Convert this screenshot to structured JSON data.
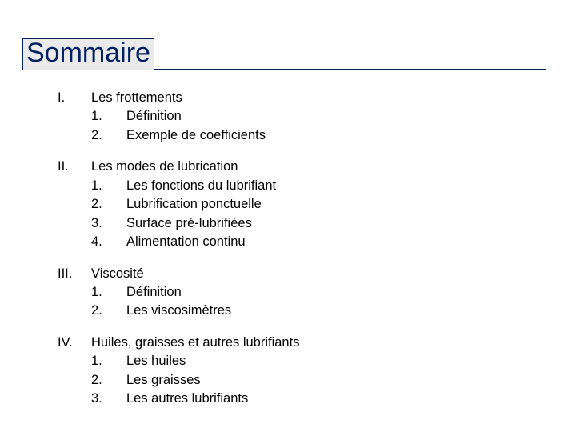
{
  "title": "Sommaire",
  "colors": {
    "title_text": "#002060",
    "title_border": "#002060",
    "title_bg": "#eaeaea",
    "rule": "#002060",
    "body_text": "#000000",
    "page_bg": "#ffffff"
  },
  "typography": {
    "title_fontsize_pt": 26,
    "body_fontsize_pt": 12.5,
    "font_family": "Arial"
  },
  "sections": [
    {
      "numeral": "I.",
      "heading": "Les frottements",
      "items": [
        {
          "num": "1.",
          "label": "Définition"
        },
        {
          "num": "2.",
          "label": "Exemple de coefficients"
        }
      ]
    },
    {
      "numeral": "II.",
      "heading": "Les modes de lubrication",
      "items": [
        {
          "num": "1.",
          "label": "Les fonctions du lubrifiant"
        },
        {
          "num": "2.",
          "label": "Lubrification ponctuelle"
        },
        {
          "num": "3.",
          "label": "Surface pré-lubrifiées"
        },
        {
          "num": "4.",
          "label": "Alimentation continu"
        }
      ]
    },
    {
      "numeral": "III.",
      "heading": "Viscosité",
      "items": [
        {
          "num": "1.",
          "label": "Définition"
        },
        {
          "num": "2.",
          "label": "Les viscosimètres"
        }
      ]
    },
    {
      "numeral": "IV.",
      "heading": "Huiles, graisses et autres lubrifiants",
      "items": [
        {
          "num": "1.",
          "label": "Les huiles"
        },
        {
          "num": "2.",
          "label": "Les graisses"
        },
        {
          "num": "3.",
          "label": "Les autres lubrifiants"
        }
      ]
    }
  ]
}
